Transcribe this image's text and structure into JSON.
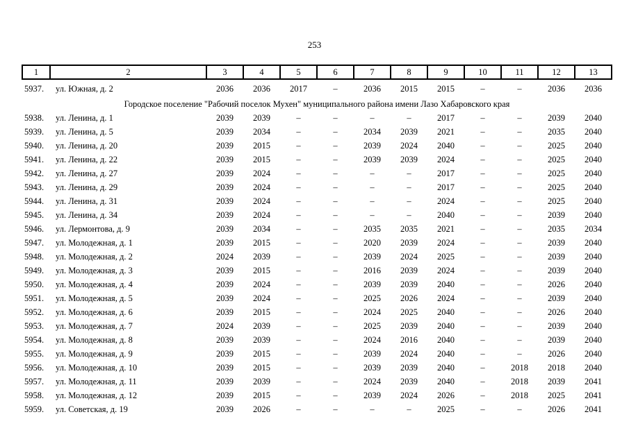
{
  "page": {
    "number": "253"
  },
  "table": {
    "column_headers": [
      "1",
      "2",
      "3",
      "4",
      "5",
      "6",
      "7",
      "8",
      "9",
      "10",
      "11",
      "12",
      "13"
    ],
    "rows": [
      {
        "type": "data",
        "first": true,
        "num": "5937.",
        "address": "ул. Южная, д. 2",
        "values": [
          "2036",
          "2036",
          "2017",
          "–",
          "2036",
          "2015",
          "2015",
          "–",
          "–",
          "2036",
          "2036"
        ]
      },
      {
        "type": "section",
        "label": "Городское поселение \"Рабочий поселок Мухен\" муниципального района имени Лазо Хабаровского края"
      },
      {
        "type": "data",
        "num": "5938.",
        "address": "ул. Ленина, д. 1",
        "values": [
          "2039",
          "2039",
          "–",
          "–",
          "–",
          "–",
          "2017",
          "–",
          "–",
          "2039",
          "2040"
        ]
      },
      {
        "type": "data",
        "num": "5939.",
        "address": "ул. Ленина, д. 5",
        "values": [
          "2039",
          "2034",
          "–",
          "–",
          "2034",
          "2039",
          "2021",
          "–",
          "–",
          "2035",
          "2040"
        ]
      },
      {
        "type": "data",
        "num": "5940.",
        "address": "ул. Ленина, д. 20",
        "values": [
          "2039",
          "2015",
          "–",
          "–",
          "2039",
          "2024",
          "2040",
          "–",
          "–",
          "2025",
          "2040"
        ]
      },
      {
        "type": "data",
        "num": "5941.",
        "address": "ул. Ленина, д. 22",
        "values": [
          "2039",
          "2015",
          "–",
          "–",
          "2039",
          "2039",
          "2024",
          "–",
          "–",
          "2025",
          "2040"
        ]
      },
      {
        "type": "data",
        "num": "5942.",
        "address": "ул. Ленина, д. 27",
        "values": [
          "2039",
          "2024",
          "–",
          "–",
          "–",
          "–",
          "2017",
          "–",
          "–",
          "2025",
          "2040"
        ]
      },
      {
        "type": "data",
        "num": "5943.",
        "address": "ул. Ленина, д. 29",
        "values": [
          "2039",
          "2024",
          "–",
          "–",
          "–",
          "–",
          "2017",
          "–",
          "–",
          "2025",
          "2040"
        ]
      },
      {
        "type": "data",
        "num": "5944.",
        "address": "ул. Ленина, д. 31",
        "values": [
          "2039",
          "2024",
          "–",
          "–",
          "–",
          "–",
          "2024",
          "–",
          "–",
          "2025",
          "2040"
        ]
      },
      {
        "type": "data",
        "num": "5945.",
        "address": "ул. Ленина, д. 34",
        "values": [
          "2039",
          "2024",
          "–",
          "–",
          "–",
          "–",
          "2040",
          "–",
          "–",
          "2039",
          "2040"
        ]
      },
      {
        "type": "data",
        "num": "5946.",
        "address": "ул. Лермонтова, д. 9",
        "values": [
          "2039",
          "2034",
          "–",
          "–",
          "2035",
          "2035",
          "2021",
          "–",
          "–",
          "2035",
          "2034"
        ]
      },
      {
        "type": "data",
        "num": "5947.",
        "address": "ул. Молодежная, д. 1",
        "values": [
          "2039",
          "2015",
          "–",
          "–",
          "2020",
          "2039",
          "2024",
          "–",
          "–",
          "2039",
          "2040"
        ]
      },
      {
        "type": "data",
        "num": "5948.",
        "address": "ул. Молодежная, д. 2",
        "values": [
          "2024",
          "2039",
          "–",
          "–",
          "2039",
          "2024",
          "2025",
          "–",
          "–",
          "2039",
          "2040"
        ]
      },
      {
        "type": "data",
        "num": "5949.",
        "address": "ул. Молодежная, д. 3",
        "values": [
          "2039",
          "2015",
          "–",
          "–",
          "2016",
          "2039",
          "2024",
          "–",
          "–",
          "2039",
          "2040"
        ]
      },
      {
        "type": "data",
        "num": "5950.",
        "address": "ул. Молодежная, д. 4",
        "values": [
          "2039",
          "2024",
          "–",
          "–",
          "2039",
          "2039",
          "2040",
          "–",
          "–",
          "2026",
          "2040"
        ]
      },
      {
        "type": "data",
        "num": "5951.",
        "address": "ул. Молодежная, д. 5",
        "values": [
          "2039",
          "2024",
          "–",
          "–",
          "2025",
          "2026",
          "2024",
          "–",
          "–",
          "2039",
          "2040"
        ]
      },
      {
        "type": "data",
        "num": "5952.",
        "address": "ул. Молодежная, д. 6",
        "values": [
          "2039",
          "2015",
          "–",
          "–",
          "2024",
          "2025",
          "2040",
          "–",
          "–",
          "2026",
          "2040"
        ]
      },
      {
        "type": "data",
        "num": "5953.",
        "address": "ул. Молодежная, д. 7",
        "values": [
          "2024",
          "2039",
          "–",
          "–",
          "2025",
          "2039",
          "2040",
          "–",
          "–",
          "2039",
          "2040"
        ]
      },
      {
        "type": "data",
        "num": "5954.",
        "address": "ул. Молодежная, д. 8",
        "values": [
          "2039",
          "2039",
          "–",
          "–",
          "2024",
          "2016",
          "2040",
          "–",
          "–",
          "2039",
          "2040"
        ]
      },
      {
        "type": "data",
        "num": "5955.",
        "address": "ул. Молодежная, д. 9",
        "values": [
          "2039",
          "2015",
          "–",
          "–",
          "2039",
          "2024",
          "2040",
          "–",
          "–",
          "2026",
          "2040"
        ]
      },
      {
        "type": "data",
        "num": "5956.",
        "address": "ул. Молодежная, д. 10",
        "values": [
          "2039",
          "2015",
          "–",
          "–",
          "2039",
          "2039",
          "2040",
          "–",
          "2018",
          "2018",
          "2040"
        ]
      },
      {
        "type": "data",
        "num": "5957.",
        "address": "ул. Молодежная, д. 11",
        "values": [
          "2039",
          "2039",
          "–",
          "–",
          "2024",
          "2039",
          "2040",
          "–",
          "2018",
          "2039",
          "2041"
        ]
      },
      {
        "type": "data",
        "num": "5958.",
        "address": "ул. Молодежная, д. 12",
        "values": [
          "2039",
          "2015",
          "–",
          "–",
          "2039",
          "2024",
          "2026",
          "–",
          "2018",
          "2025",
          "2041"
        ]
      },
      {
        "type": "data",
        "num": "5959.",
        "address": "ул. Советская, д. 19",
        "values": [
          "2039",
          "2026",
          "–",
          "–",
          "–",
          "–",
          "2025",
          "–",
          "–",
          "2026",
          "2041"
        ]
      }
    ]
  }
}
